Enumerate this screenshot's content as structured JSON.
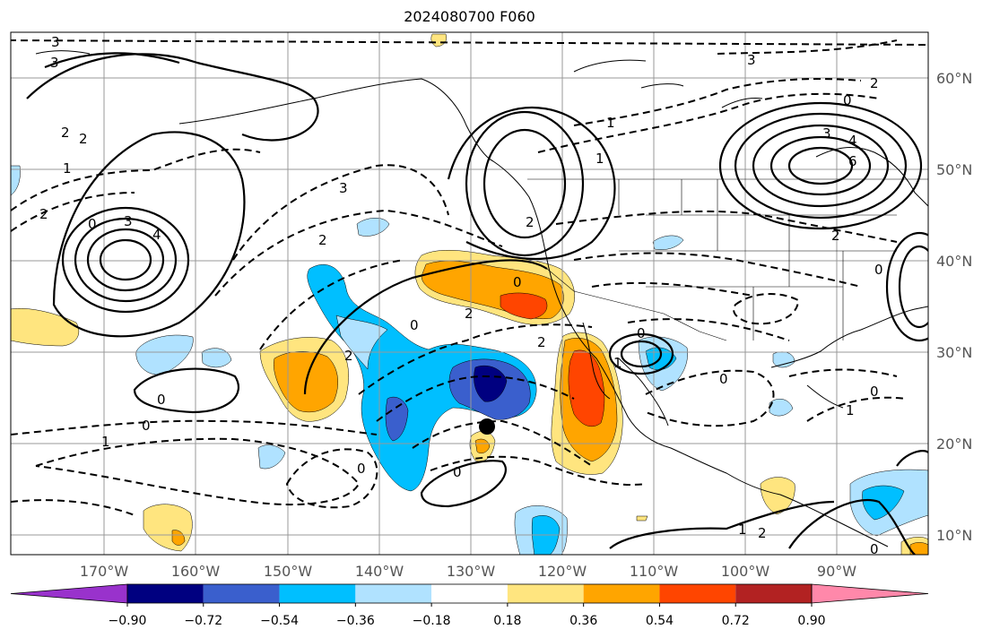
{
  "title": "2024080700 F060",
  "lon_labels": [
    "170°W",
    "160°W",
    "150°W",
    "140°W",
    "130°W",
    "120°W",
    "110°W",
    "100°W",
    "90°W"
  ],
  "lat_labels": [
    "60°N",
    "50°N",
    "40°N",
    "30°N",
    "20°N",
    "10°N"
  ],
  "colorbar": {
    "colors": [
      "#9932cc",
      "#000080",
      "#3a5fcd",
      "#00bfff",
      "#b0e2ff",
      "#ffffff",
      "#ffe57f",
      "#ffa500",
      "#ff4500",
      "#b22222",
      "#ff88aa"
    ],
    "tick_labels": [
      "−0.90",
      "−0.72",
      "−0.54",
      "−0.36",
      "−0.18",
      "0.18",
      "0.36",
      "0.54",
      "0.72",
      "0.90"
    ]
  },
  "contour_labels": {
    "l1": "3",
    "l2": "3",
    "l3": "2",
    "l4": "2",
    "l5": "1",
    "l6": "2",
    "l7": "0",
    "l8": "3",
    "l9": "4",
    "l10": "3",
    "l11": "2",
    "l12": "2",
    "l13": "0",
    "l14": "2",
    "l15": "0",
    "l16": "1",
    "l17": "2",
    "l18": "0",
    "l19": "0",
    "l20": "1",
    "l21": "0",
    "l22": "0",
    "l23": "2",
    "l24": "3",
    "l25": "4",
    "l26": "6",
    "l27": "0",
    "l28": "2",
    "l29": "3",
    "l30": "2",
    "l31": "0",
    "l32": "1",
    "l33": "0",
    "l34": "1",
    "l35": "0",
    "l36": "2",
    "l37": "1",
    "l38": "0",
    "l39": "1",
    "l40": "0"
  },
  "marker": {
    "label": "",
    "color": "#000000"
  }
}
